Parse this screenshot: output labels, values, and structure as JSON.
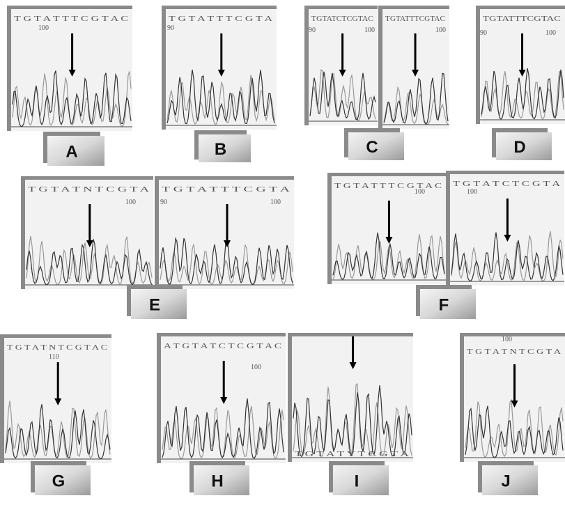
{
  "panels": [
    {
      "label": "A",
      "traces": [
        {
          "sequence": "T G T A T T T C G T A C",
          "positions": [
            "100"
          ]
        }
      ]
    },
    {
      "label": "B",
      "traces": [
        {
          "sequence": "T G T A T T T C G T A",
          "positions": [
            "90"
          ]
        }
      ]
    },
    {
      "label": "C",
      "traces": [
        {
          "sequence": "TGTATCTCGTAC",
          "positions": [
            "90",
            "100"
          ]
        },
        {
          "sequence": "TGTATTTCGTAC",
          "positions": [
            "100"
          ]
        }
      ]
    },
    {
      "label": "D",
      "traces": [
        {
          "sequence": "TGTATTTCGTAC",
          "positions": [
            "90",
            "100"
          ]
        }
      ]
    },
    {
      "label": "E",
      "traces": [
        {
          "sequence": "T G T A T N T C G T A",
          "positions": [
            "100"
          ]
        },
        {
          "sequence": "T G T A T T T C G T A",
          "positions": [
            "90",
            "100"
          ]
        }
      ]
    },
    {
      "label": "F",
      "traces": [
        {
          "sequence": "T G T A T T T C G T A C",
          "positions": [
            "100"
          ]
        },
        {
          "sequence": "T G T A T C T C G T A",
          "positions": [
            "100"
          ]
        }
      ]
    },
    {
      "label": "G",
      "traces": [
        {
          "sequence": "T G T A T N T C G T A C",
          "positions": [
            "110"
          ]
        }
      ]
    },
    {
      "label": "H",
      "traces": [
        {
          "sequence": "A T G T A T C T C G T A C",
          "positions": [
            "100"
          ]
        }
      ]
    },
    {
      "label": "I",
      "traces": [
        {
          "sequence": "T G T A T Y T C G T A",
          "positions": []
        }
      ]
    },
    {
      "label": "J",
      "traces": [
        {
          "sequence": "T G T A T N T C G T A",
          "positions": [
            "100"
          ]
        }
      ]
    }
  ]
}
